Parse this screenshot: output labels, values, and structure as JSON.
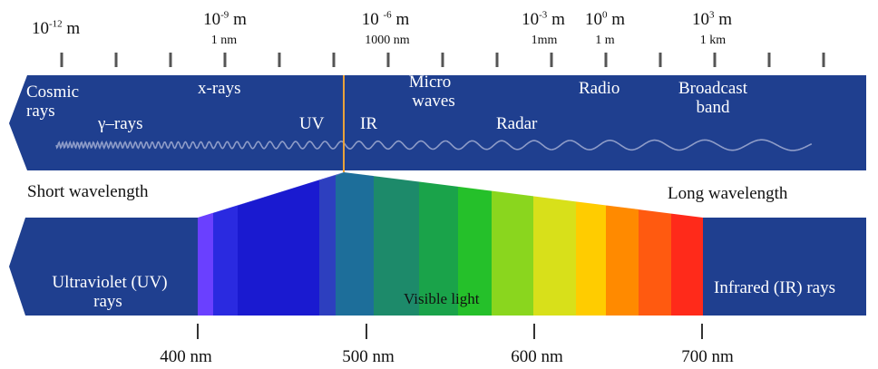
{
  "top_scale": {
    "wavelengths": [
      {
        "base": "10",
        "exp": "-12",
        "unit": " m",
        "sub": ""
      },
      {
        "base": "10",
        "exp": "-9",
        "unit": " m",
        "sub": "1 nm"
      },
      {
        "base": "10 ",
        "exp": "-6",
        "unit": " m",
        "sub": "1000 nm"
      },
      {
        "base": "10",
        "exp": "-3",
        "unit": " m",
        "sub": "1mm"
      },
      {
        "base": "10",
        "exp": "0",
        "unit": " m",
        "sub": "1 m"
      },
      {
        "base": "10",
        "exp": "3",
        "unit": " m",
        "sub": "1 km"
      }
    ]
  },
  "upper_band": {
    "labels": {
      "cosmic_1": "Cosmic",
      "cosmic_2": "rays",
      "gamma": "γ–rays",
      "xrays": "x-rays",
      "uv": "UV",
      "ir": "IR",
      "micro_1": "Micro",
      "micro_2": "waves",
      "radar": "Radar",
      "radio": "Radio",
      "broadcast_1": "Broadcast",
      "broadcast_2": "band"
    }
  },
  "middle": {
    "short": "Short wavelength",
    "long": "Long wavelength"
  },
  "lower_band": {
    "uv_1": "Ultraviolet (UV)",
    "uv_2": "rays",
    "visible": "Visible light",
    "ir": "Infrared (IR) rays"
  },
  "bottom_scale": {
    "labels": [
      "400 nm",
      "500 nm",
      "600 nm",
      "700 nm"
    ]
  },
  "colors": {
    "band_blue": "#1f3f8f",
    "spectrum": [
      "#6a40ff",
      "#2a2ae0",
      "#1a1ad0",
      "#2d3fbf",
      "#1d6e9a",
      "#1d8a6a",
      "#1aa34a",
      "#25c02a",
      "#8ad61e",
      "#d8e01a",
      "#ffcc00",
      "#ff8a00",
      "#ff5a10",
      "#ff2a1a"
    ]
  }
}
